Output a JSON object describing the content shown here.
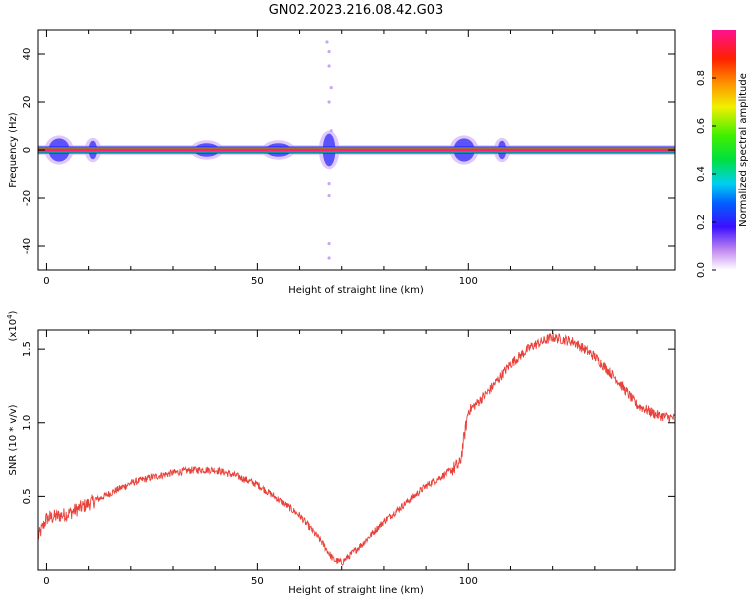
{
  "title": "GN02.2023.216.08.42.G03",
  "chart_data": [
    {
      "type": "heatmap",
      "xlabel": "Height of straight line (km)",
      "ylabel": "Frequency (Hz)",
      "xlim": [
        -2,
        149
      ],
      "ylim": [
        -50,
        50
      ],
      "x_ticks": [
        "0",
        "50",
        "100"
      ],
      "x_tick_values": [
        0,
        50,
        100
      ],
      "y_ticks": [
        "40",
        "20",
        "0",
        "-20",
        "-40"
      ],
      "y_tick_values": [
        40,
        20,
        0,
        -20,
        -40
      ],
      "main_band_frequency_hz": 0,
      "spread_regions": [
        {
          "x_center_km": 3,
          "width_km": 5,
          "spread_hz": 4
        },
        {
          "x_center_km": 11,
          "width_km": 2,
          "spread_hz": 3
        },
        {
          "x_center_km": 38,
          "width_km": 6,
          "spread_hz": 2
        },
        {
          "x_center_km": 55,
          "width_km": 6,
          "spread_hz": 2
        },
        {
          "x_center_km": 67,
          "width_km": 3,
          "spread_hz": 6
        },
        {
          "x_center_km": 99,
          "width_km": 5,
          "spread_hz": 4
        },
        {
          "x_center_km": 108,
          "width_km": 2,
          "spread_hz": 3
        }
      ],
      "sparse_points": [
        {
          "x": 67,
          "y": 41
        },
        {
          "x": 67,
          "y": 35
        },
        {
          "x": 67.5,
          "y": 26
        },
        {
          "x": 67,
          "y": 20
        },
        {
          "x": 67.5,
          "y": 8
        },
        {
          "x": 67,
          "y": -14
        },
        {
          "x": 67,
          "y": -19
        },
        {
          "x": 67,
          "y": -39
        },
        {
          "x": 67,
          "y": -45
        },
        {
          "x": 66.5,
          "y": 45
        }
      ]
    },
    {
      "type": "line",
      "xlabel": "Height of straight line (km)",
      "ylabel": "SNR (10 * v/v)",
      "y_scale_label": "(x10",
      "y_scale_exponent": "4",
      "y_scale_suffix": ")",
      "xlim": [
        -2,
        149
      ],
      "ylim": [
        0,
        1.63
      ],
      "x_ticks": [
        "0",
        "50",
        "100"
      ],
      "x_tick_values": [
        0,
        50,
        100
      ],
      "y_ticks": [
        "0.5",
        "1.0",
        "1.5"
      ],
      "y_tick_values": [
        0.5,
        1.0,
        1.5
      ],
      "series": [
        {
          "color": "#e8413a",
          "x": [
            -2,
            0,
            5,
            10,
            15,
            20,
            25,
            30,
            35,
            40,
            45,
            50,
            55,
            60,
            65,
            68,
            70,
            72,
            75,
            80,
            85,
            90,
            95,
            97,
            98,
            100,
            102,
            105,
            110,
            115,
            120,
            125,
            130,
            135,
            140,
            145,
            149
          ],
          "y": [
            0.22,
            0.35,
            0.38,
            0.45,
            0.52,
            0.59,
            0.63,
            0.66,
            0.68,
            0.68,
            0.64,
            0.58,
            0.48,
            0.37,
            0.2,
            0.07,
            0.05,
            0.1,
            0.18,
            0.33,
            0.45,
            0.57,
            0.66,
            0.7,
            0.72,
            1.08,
            1.13,
            1.22,
            1.4,
            1.52,
            1.58,
            1.55,
            1.45,
            1.3,
            1.12,
            1.05,
            1.03
          ]
        }
      ]
    }
  ],
  "colorbar": {
    "label": "Normalized spectral amplitude",
    "ticks": [
      "0.0",
      "0.2",
      "0.4",
      "0.6",
      "0.8"
    ],
    "tick_values": [
      0.0,
      0.2,
      0.4,
      0.6,
      0.8
    ],
    "range": [
      0,
      1
    ]
  }
}
